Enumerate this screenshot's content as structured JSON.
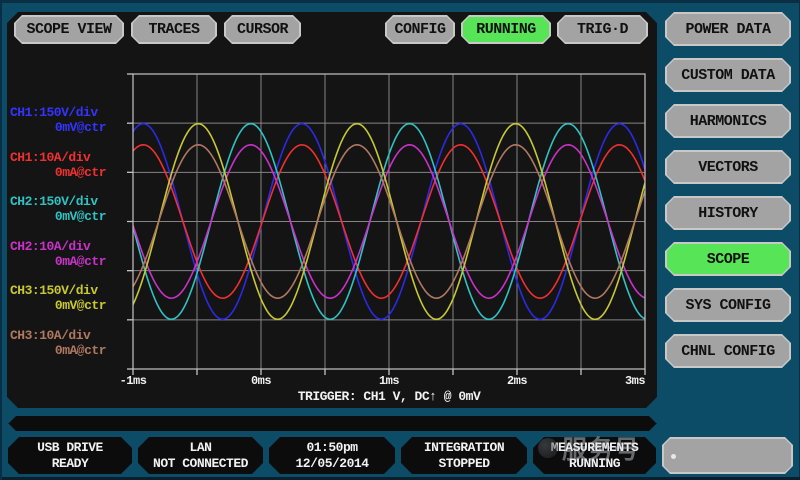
{
  "colors": {
    "background_teal": "#0d4c66",
    "panel_black": "#141414",
    "button_gray": "#a3a3a3",
    "button_border": "#c8c8c8",
    "active_green": "#57e457",
    "status_panel_black": "#0c0c0c",
    "grid_gray": "#848484",
    "axis_gray": "#c4c4c4",
    "text_white": "#f2f2f2"
  },
  "toolbar": {
    "buttons": [
      {
        "label": "SCOPE VIEW"
      },
      {
        "label": "TRACES"
      },
      {
        "label": "CURSOR"
      },
      {
        "label": "CONFIG"
      },
      {
        "label": "RUNNING",
        "state": "active"
      },
      {
        "label": "TRIG·D"
      }
    ]
  },
  "sidebar": {
    "buttons": [
      {
        "label": "POWER DATA",
        "active": false
      },
      {
        "label": "CUSTOM DATA",
        "active": false
      },
      {
        "label": "HARMONICS",
        "active": false
      },
      {
        "label": "VECTORS",
        "active": false
      },
      {
        "label": "HISTORY",
        "active": false
      },
      {
        "label": "SCOPE",
        "active": true
      },
      {
        "label": "SYS CONFIG",
        "active": false
      },
      {
        "label": "CHNL CONFIG",
        "active": false
      }
    ]
  },
  "channel_scales": [
    {
      "scale": "CH1:150V/div",
      "offset": "0mV@ctr",
      "color": "#3434ff"
    },
    {
      "scale": "CH1:10A/div",
      "offset": "0mA@ctr",
      "color": "#f03030"
    },
    {
      "scale": "CH2:150V/div",
      "offset": "0mV@ctr",
      "color": "#30c2c2"
    },
    {
      "scale": "CH2:10A/div",
      "offset": "0mA@ctr",
      "color": "#c832c8"
    },
    {
      "scale": "CH3:150V/div",
      "offset": "0mV@ctr",
      "color": "#c8c832"
    },
    {
      "scale": "CH3:10A/div",
      "offset": "0mA@ctr",
      "color": "#b07860"
    }
  ],
  "chart_data": {
    "type": "line",
    "x_ticks": [
      "-1ms",
      "0ms",
      "1ms",
      "2ms",
      "3ms"
    ],
    "x_range_ms": [
      -1,
      3
    ],
    "x_grid_step_ms": 0.5,
    "y_divisions": 6,
    "period_ms": 1.24,
    "series": [
      {
        "name": "CH1 voltage",
        "color": "#2a2ae8",
        "amplitude_div": 1.99,
        "peak_at_ms": -0.92
      },
      {
        "name": "CH1 current",
        "color": "#f03030",
        "amplitude_div": 1.56,
        "peak_at_ms": -0.92
      },
      {
        "name": "CH2 voltage",
        "color": "#30c2c2",
        "amplitude_div": 1.99,
        "peak_at_ms": -0.08
      },
      {
        "name": "CH2 current",
        "color": "#c832c8",
        "amplitude_div": 1.56,
        "peak_at_ms": -0.08
      },
      {
        "name": "CH3 voltage",
        "color": "#c8c832",
        "amplitude_div": 1.99,
        "peak_at_ms": -0.49
      },
      {
        "name": "CH3 current",
        "color": "#b07860",
        "amplitude_div": 1.56,
        "peak_at_ms": -0.49
      }
    ],
    "trigger_label": "TRIGGER: CH1 V, DC↑ @ 0mV"
  },
  "status_bar": {
    "panels": [
      {
        "line1": "USB DRIVE",
        "line2": "READY"
      },
      {
        "line1": "LAN",
        "line2": "NOT CONNECTED"
      },
      {
        "line1": "01:50pm",
        "line2": "12/05/2014"
      },
      {
        "line1": "INTEGRATION",
        "line2": "STOPPED"
      },
      {
        "line1": "MEASUREMENTS",
        "line2": "RUNNING"
      }
    ]
  },
  "watermark": {
    "text": "服务号"
  }
}
